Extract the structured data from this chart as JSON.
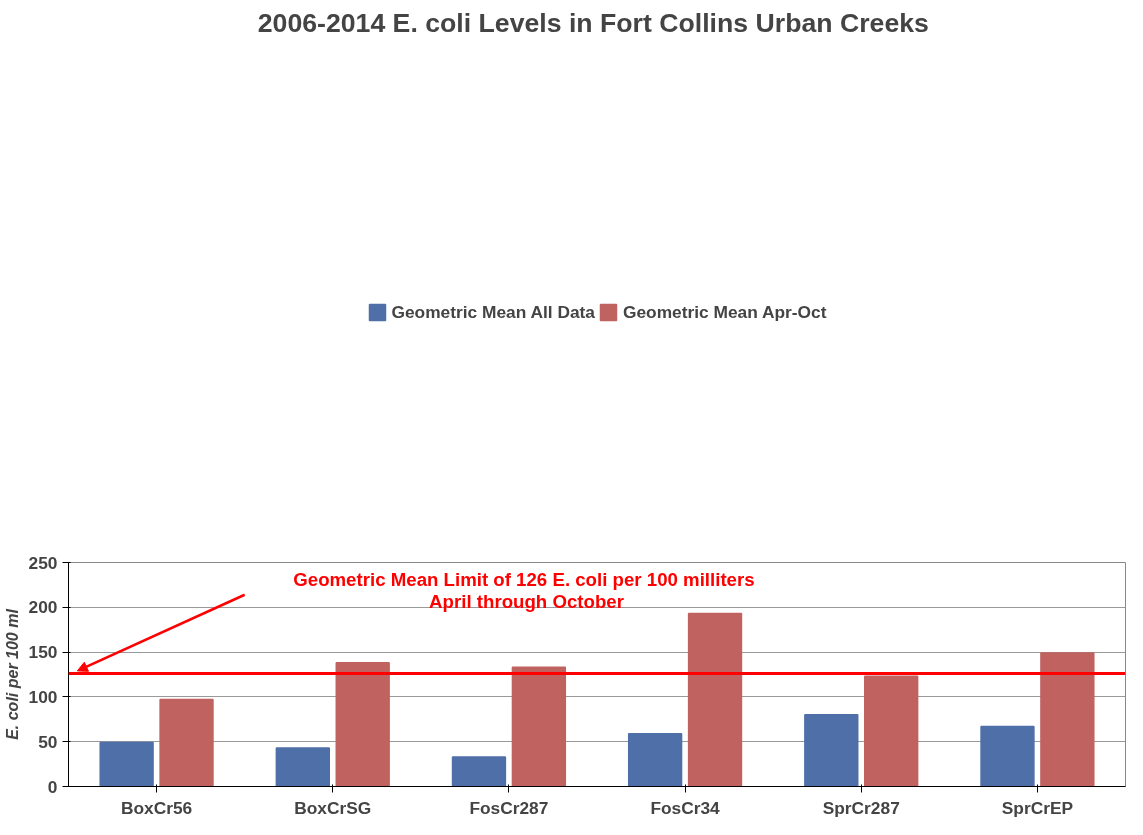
{
  "chart_data": {
    "type": "bar",
    "title": "2006-2014  E. coli Levels in Fort Collins Urban Creeks",
    "ylabel": "E. coli per 100 ml",
    "categories": [
      "BoxCr56",
      "BoxCrSG",
      "FosCr287",
      "FosCr34",
      "SprCr287",
      "SprCrEP"
    ],
    "series": [
      {
        "name": "Geometric Mean All Data",
        "color": "#4f6fa8",
        "values": [
          49,
          43,
          33,
          59,
          80,
          67
        ]
      },
      {
        "name": "Geometric Mean Apr-Oct",
        "color": "#c0625f",
        "values": [
          97,
          138,
          133,
          193,
          123,
          149
        ]
      }
    ],
    "ylim": [
      0,
      250
    ],
    "yticks": [
      0,
      50,
      100,
      150,
      200,
      250
    ],
    "grid": "y",
    "legend": "top",
    "ref_lines": [
      {
        "axis": "y",
        "value": 126,
        "label": "Geometric Mean Limit of 126 E. coli  per 100 milliters\nApril through October",
        "color": "#ff0000"
      }
    ]
  }
}
